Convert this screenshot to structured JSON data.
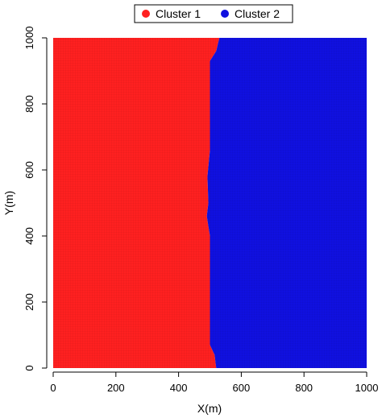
{
  "chart_data": {
    "type": "heatmap",
    "xlabel": "X(m)",
    "ylabel": "Y(m)",
    "xlim": [
      0,
      1000
    ],
    "ylim": [
      0,
      1000
    ],
    "x_ticks": [
      0,
      200,
      400,
      600,
      800,
      1000
    ],
    "y_ticks": [
      0,
      200,
      400,
      600,
      800,
      1000
    ],
    "series": [
      {
        "name": "Cluster 1",
        "color": "#ff2020",
        "x_range": [
          0,
          505
        ],
        "y_range": [
          0,
          1000
        ]
      },
      {
        "name": "Cluster 2",
        "color": "#1010e0",
        "x_range": [
          505,
          1000
        ],
        "y_range": [
          0,
          1000
        ]
      }
    ],
    "boundary": [
      {
        "y": 0,
        "x": 520
      },
      {
        "y": 40,
        "x": 515
      },
      {
        "y": 70,
        "x": 500
      },
      {
        "y": 400,
        "x": 500
      },
      {
        "y": 460,
        "x": 490
      },
      {
        "y": 500,
        "x": 495
      },
      {
        "y": 580,
        "x": 492
      },
      {
        "y": 660,
        "x": 500
      },
      {
        "y": 930,
        "x": 500
      },
      {
        "y": 960,
        "x": 520
      },
      {
        "y": 1000,
        "x": 530
      }
    ],
    "legend": {
      "placement": "top-center",
      "entries": [
        "Cluster 1",
        "Cluster 2"
      ]
    }
  }
}
